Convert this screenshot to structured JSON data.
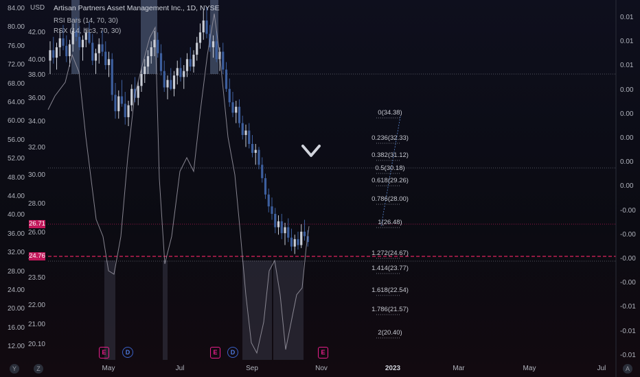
{
  "legend": {
    "title": "Artisan Partners Asset Management Inc., 1D, NYSE",
    "indicator1": "RSI Bars (14, 70, 30)",
    "indicator2": "RSX (14, hlc3, 70, 30)"
  },
  "currency": "USD",
  "left_axis_outer": [
    "84.00",
    "80.00",
    "76.00",
    "72.00",
    "68.00",
    "64.00",
    "60.00",
    "56.00",
    "52.00",
    "48.00",
    "44.00",
    "40.00",
    "36.00",
    "32.00",
    "28.00",
    "24.00",
    "20.00",
    "16.00",
    "12.00"
  ],
  "left_axis_inner": [
    "42.00",
    "40.00",
    "38.00",
    "36.00",
    "34.00",
    "32.00",
    "30.00",
    "28.00",
    "26.00",
    "24.00",
    "23.50",
    "22.00",
    "21.00",
    "20.10"
  ],
  "right_axis": [
    "0.01",
    "0.01",
    "0.01",
    "0.00",
    "0.00",
    "0.00",
    "0.00",
    "0.00",
    "-0.00",
    "-0.00",
    "-0.00",
    "-0.00",
    "-0.01",
    "-0.01",
    "-0.01"
  ],
  "x_labels": [
    {
      "label": "May",
      "bold": false
    },
    {
      "label": "Jul",
      "bold": false
    },
    {
      "label": "Sep",
      "bold": false
    },
    {
      "label": "Nov",
      "bold": false
    },
    {
      "label": "2023",
      "bold": true
    },
    {
      "label": "Mar",
      "bold": false
    },
    {
      "label": "May",
      "bold": false
    },
    {
      "label": "Jul",
      "bold": false
    }
  ],
  "price_tags": {
    "current": "26.71",
    "level": "24.76"
  },
  "fib_levels": [
    "0(34.38)",
    "0.236(32.33)",
    "0.382(31.12)",
    "0.5(30.18)",
    "0.618(29.26)",
    "0.786(28.00)",
    "1(26.48)",
    "1.272(24.67)",
    "1.414(23.77)",
    "1.618(22.54)",
    "1.786(21.57)",
    "2(20.40)"
  ],
  "events": [
    "E",
    "D",
    "E",
    "D",
    "E"
  ],
  "corner_left": {
    "y": "Y",
    "z": "Z"
  },
  "corner_right": "A",
  "colors": {
    "up": "#c9cdd6",
    "down": "#3d5f9e",
    "rsx": "#9c9aa6",
    "accent": "#c2185b"
  },
  "chart_data": {
    "type": "candlestick",
    "title": "Artisan Partners Asset Management Inc., 1D, NYSE",
    "candles": [
      [
        38.9,
        40.2,
        38.0,
        39.6
      ],
      [
        39.6,
        40.5,
        38.7,
        39.1
      ],
      [
        39.1,
        40.1,
        38.3,
        39.8
      ],
      [
        39.8,
        41.0,
        39.2,
        40.4
      ],
      [
        40.4,
        41.3,
        39.6,
        39.9
      ],
      [
        39.9,
        40.6,
        38.8,
        39.2
      ],
      [
        39.2,
        40.3,
        38.5,
        40.0
      ],
      [
        40.0,
        41.4,
        39.5,
        40.9
      ],
      [
        40.9,
        41.8,
        40.2,
        40.5
      ],
      [
        40.5,
        41.2,
        39.6,
        39.8
      ],
      [
        39.8,
        40.6,
        38.9,
        40.3
      ],
      [
        40.3,
        41.1,
        39.8,
        40.8
      ],
      [
        40.8,
        41.5,
        40.0,
        40.1
      ],
      [
        40.1,
        40.7,
        38.6,
        38.9
      ],
      [
        38.9,
        39.7,
        38.0,
        39.4
      ],
      [
        39.4,
        40.4,
        38.7,
        40.0
      ],
      [
        40.0,
        40.9,
        39.2,
        39.5
      ],
      [
        39.5,
        40.2,
        38.3,
        38.6
      ],
      [
        38.6,
        39.5,
        37.8,
        39.0
      ],
      [
        39.0,
        39.4,
        36.2,
        36.6
      ],
      [
        36.6,
        37.4,
        35.0,
        35.5
      ],
      [
        35.5,
        36.9,
        35.0,
        36.5
      ],
      [
        36.5,
        37.6,
        35.8,
        36.0
      ],
      [
        36.0,
        36.8,
        34.6,
        35.1
      ],
      [
        35.1,
        36.2,
        34.5,
        35.9
      ],
      [
        35.9,
        37.3,
        35.5,
        37.0
      ],
      [
        37.0,
        37.8,
        36.1,
        36.4
      ],
      [
        36.4,
        37.5,
        35.9,
        37.2
      ],
      [
        37.2,
        38.4,
        36.8,
        38.0
      ],
      [
        38.0,
        39.0,
        37.4,
        38.5
      ],
      [
        38.5,
        39.6,
        38.0,
        39.2
      ],
      [
        39.2,
        40.2,
        38.7,
        39.8
      ],
      [
        39.8,
        40.9,
        39.2,
        40.3
      ],
      [
        40.3,
        40.8,
        39.1,
        39.4
      ],
      [
        39.4,
        40.0,
        37.9,
        38.2
      ],
      [
        38.2,
        38.9,
        36.8,
        37.1
      ],
      [
        37.1,
        37.9,
        36.3,
        37.6
      ],
      [
        37.6,
        38.4,
        36.9,
        37.0
      ],
      [
        37.0,
        38.2,
        36.5,
        37.9
      ],
      [
        37.9,
        38.9,
        37.3,
        38.4
      ],
      [
        38.4,
        39.1,
        37.5,
        37.8
      ],
      [
        37.8,
        38.6,
        37.0,
        38.2
      ],
      [
        38.2,
        39.4,
        37.8,
        39.0
      ],
      [
        39.0,
        39.8,
        38.2,
        38.5
      ],
      [
        38.5,
        39.6,
        38.1,
        39.3
      ],
      [
        39.3,
        40.5,
        38.9,
        40.1
      ],
      [
        40.1,
        41.4,
        39.7,
        40.8
      ],
      [
        40.8,
        42.3,
        40.3,
        41.6
      ],
      [
        41.6,
        42.5,
        40.4,
        40.7
      ],
      [
        40.7,
        41.3,
        39.5,
        39.8
      ],
      [
        39.8,
        40.6,
        39.1,
        40.2
      ],
      [
        40.2,
        40.9,
        38.8,
        39.0
      ],
      [
        39.0,
        39.8,
        38.2,
        39.5
      ],
      [
        39.5,
        40.1,
        38.0,
        38.3
      ],
      [
        38.3,
        38.8,
        36.8,
        37.0
      ],
      [
        37.0,
        37.7,
        35.8,
        36.1
      ],
      [
        36.1,
        36.8,
        35.1,
        35.4
      ],
      [
        35.4,
        36.2,
        34.7,
        35.8
      ],
      [
        35.8,
        36.3,
        34.4,
        34.7
      ],
      [
        34.7,
        35.2,
        33.6,
        33.9
      ],
      [
        33.9,
        34.6,
        33.1,
        34.2
      ],
      [
        34.2,
        34.7,
        33.0,
        33.3
      ],
      [
        33.3,
        33.9,
        32.4,
        32.7
      ],
      [
        32.7,
        33.3,
        31.9,
        32.9
      ],
      [
        32.9,
        33.1,
        31.6,
        31.9
      ],
      [
        31.9,
        32.4,
        30.7,
        31.0
      ],
      [
        31.0,
        31.3,
        29.6,
        29.9
      ],
      [
        29.9,
        30.3,
        28.7,
        29.1
      ],
      [
        29.1,
        29.7,
        28.2,
        28.6
      ],
      [
        28.6,
        29.0,
        27.3,
        27.7
      ],
      [
        27.7,
        28.5,
        27.2,
        28.1
      ],
      [
        28.1,
        28.6,
        26.9,
        27.3
      ],
      [
        27.3,
        28.0,
        26.5,
        27.7
      ],
      [
        27.7,
        28.3,
        26.7,
        27.0
      ],
      [
        27.0,
        27.6,
        26.1,
        26.4
      ],
      [
        26.4,
        27.2,
        25.9,
        26.9
      ],
      [
        26.9,
        27.4,
        26.2,
        26.5
      ],
      [
        26.5,
        27.9,
        26.3,
        27.4
      ],
      [
        27.4,
        28.2,
        26.8,
        27.1
      ],
      [
        27.1,
        27.5,
        26.4,
        26.71
      ]
    ],
    "xlabel": "",
    "ylabel": ""
  }
}
